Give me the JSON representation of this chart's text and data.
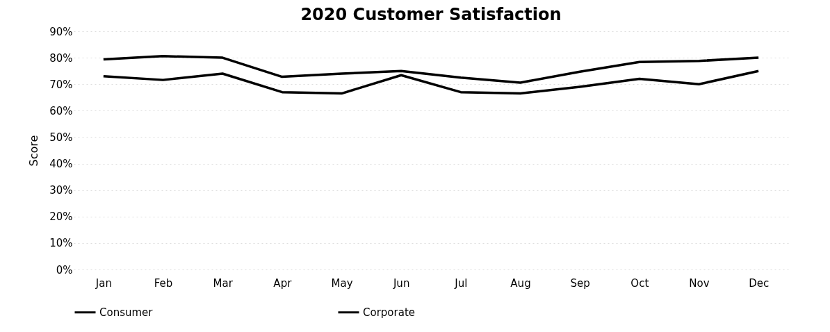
{
  "chart_data": {
    "type": "line",
    "title": "2020 Customer Satisfaction",
    "ylabel": "Score",
    "categories": [
      "Jan",
      "Feb",
      "Mar",
      "Apr",
      "May",
      "Jun",
      "Jul",
      "Aug",
      "Sep",
      "Oct",
      "Nov",
      "Dec"
    ],
    "series": [
      {
        "name": "Consumer",
        "color": "#000000",
        "values": [
          73,
          71.6,
          74,
          67,
          66.5,
          73.4,
          67,
          66.5,
          69,
          72,
          70,
          75
        ]
      },
      {
        "name": "Corporate",
        "color": "#000000",
        "values": [
          79.4,
          80.6,
          80,
          72.8,
          74,
          75,
          72.5,
          70.6,
          74.7,
          78.4,
          78.8,
          80
        ]
      }
    ],
    "ylim": [
      0,
      90
    ],
    "yticks": [
      {
        "value": 0,
        "label": "0%"
      },
      {
        "value": 10,
        "label": "10%"
      },
      {
        "value": 20,
        "label": "20%"
      },
      {
        "value": 30,
        "label": "30%"
      },
      {
        "value": 40,
        "label": "40%"
      },
      {
        "value": 50,
        "label": "50%"
      },
      {
        "value": 60,
        "label": "60%"
      },
      {
        "value": 70,
        "label": "70%"
      },
      {
        "value": 80,
        "label": "80%"
      },
      {
        "value": 90,
        "label": "90%"
      }
    ],
    "grid": "y",
    "legend": "bottom",
    "marker": "none",
    "line_style": "solid"
  }
}
